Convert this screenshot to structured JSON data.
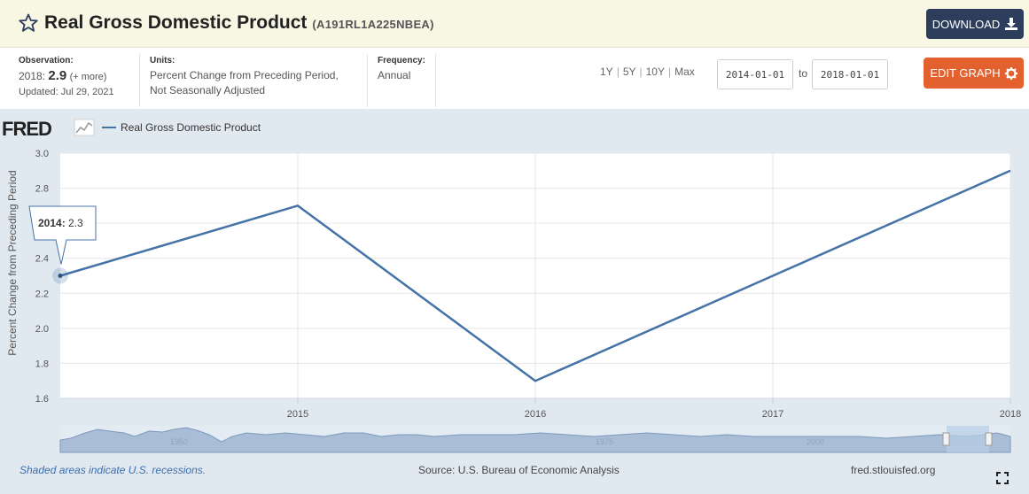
{
  "header": {
    "title": "Real Gross Domestic Product",
    "series_id": "(A191RL1A225NBEA)",
    "download_label": "DOWNLOAD",
    "star_icon": "star-outline-icon",
    "download_icon": "download-icon"
  },
  "meta": {
    "observation_label": "Observation:",
    "observation_year": "2018:",
    "observation_value": "2.9",
    "observation_more": "(+ more)",
    "updated": "Updated: Jul 29, 2021",
    "units_label": "Units:",
    "units_line1": "Percent Change from Preceding Period,",
    "units_line2": "Not Seasonally Adjusted",
    "frequency_label": "Frequency:",
    "frequency_value": "Annual",
    "ranges": [
      "1Y",
      "5Y",
      "10Y",
      "Max"
    ],
    "date_from": "2014-01-01",
    "to_label": "to",
    "date_to": "2018-01-01",
    "edit_label": "EDIT GRAPH",
    "edit_icon": "gear-icon"
  },
  "chart_data": {
    "type": "line",
    "logo": "FRED",
    "x": [
      2014,
      2015,
      2016,
      2017,
      2018
    ],
    "series": [
      {
        "name": "Real Gross Domestic Product",
        "values": [
          2.3,
          2.7,
          1.7,
          2.3,
          2.9
        ],
        "color": "#4572a7"
      }
    ],
    "xtick_labels": [
      "2015",
      "2016",
      "2017",
      "2018"
    ],
    "xtick_values": [
      2015,
      2016,
      2017,
      2018
    ],
    "yticks": [
      "1.6",
      "1.8",
      "2.0",
      "2.2",
      "2.4",
      "2.6",
      "2.8",
      "3.0"
    ],
    "ylim": [
      1.6,
      3.0
    ],
    "xlim": [
      2014,
      2018
    ],
    "ylabel": "Percent Change from Preceding Period",
    "grid": true,
    "tooltip": {
      "year": "2014:",
      "value": "2.3"
    },
    "navigator_labels": [
      "1950",
      "1975",
      "2000"
    ],
    "recession_note": "Shaded areas indicate U.S. recessions.",
    "source": "Source: U.S. Bureau of Economic Analysis",
    "url": "fred.stlouisfed.org"
  }
}
